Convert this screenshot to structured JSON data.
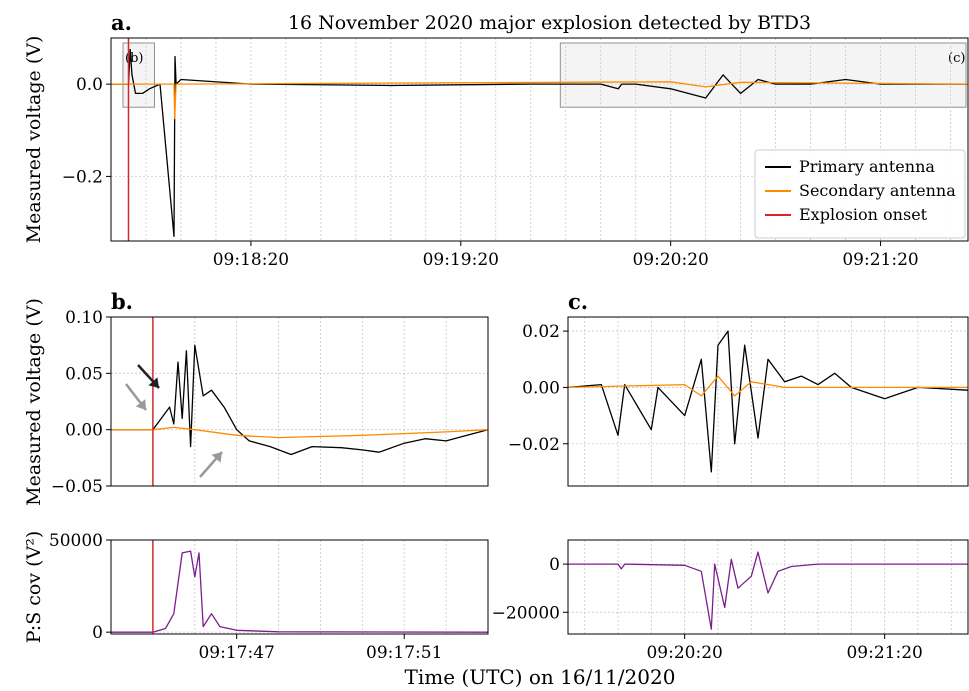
{
  "figure": {
    "xlabel": "Time (UTC) on 16/11/2020",
    "colors": {
      "primary": "#000000",
      "secondary": "#ff8c00",
      "onset": "#d62728",
      "cov": "#7b1f8c",
      "grid": "#c8c8c8",
      "shade": "#dcdcdc"
    }
  },
  "chart_data": [
    {
      "id": "a",
      "type": "line",
      "panel_label": "a.",
      "title": "16 November 2020 major explosion detected by BTD3",
      "ylabel": "Measured voltage (V)",
      "xlim": [
        "09:17:40",
        "09:21:45"
      ],
      "ylim": [
        -0.34,
        0.1
      ],
      "x_ticks": [
        "09:18:20",
        "09:19:20",
        "09:20:20",
        "09:21:20"
      ],
      "y_ticks": [
        -0.2,
        0.0
      ],
      "y_tick_labels": [
        "−0.2",
        "0.0"
      ],
      "grid": true,
      "legend": {
        "placement": "lower right",
        "entries": [
          "Primary antenna",
          "Secondary antenna",
          "Explosion onset"
        ]
      },
      "regions": [
        {
          "label": "(b)",
          "x": [
            "09:17:40",
            "09:17:53"
          ],
          "y": [
            -0.05,
            0.1
          ]
        },
        {
          "label": "(c)",
          "x": [
            "09:19:45",
            "09:21:45"
          ],
          "y": [
            -0.05,
            0.1
          ]
        }
      ],
      "onset": "09:17:45",
      "series": [
        {
          "name": "Primary antenna",
          "points": [
            [
              "09:17:40",
              0.0
            ],
            [
              "09:17:45",
              0.0
            ],
            [
              "09:17:45.5",
              0.075
            ],
            [
              "09:17:46",
              0.02
            ],
            [
              "09:17:47",
              -0.02
            ],
            [
              "09:17:49",
              -0.02
            ],
            [
              "09:17:51",
              -0.01
            ],
            [
              "09:17:54",
              0.0
            ],
            [
              "09:17:58",
              -0.33
            ],
            [
              "09:17:58.3",
              0.06
            ],
            [
              "09:17:58.6",
              0.0
            ],
            [
              "09:18:00",
              0.01
            ],
            [
              "09:18:20",
              0.0
            ],
            [
              "09:19:00",
              -0.003
            ],
            [
              "09:19:40",
              0.0
            ],
            [
              "09:20:00",
              0.0
            ],
            [
              "09:20:05",
              -0.01
            ],
            [
              "09:20:06",
              0.0
            ],
            [
              "09:20:10",
              0.0
            ],
            [
              "09:20:20",
              -0.01
            ],
            [
              "09:20:30",
              -0.03
            ],
            [
              "09:20:35",
              0.02
            ],
            [
              "09:20:40",
              -0.02
            ],
            [
              "09:20:45",
              0.01
            ],
            [
              "09:20:50",
              0.0
            ],
            [
              "09:21:00",
              0.0
            ],
            [
              "09:21:10",
              0.01
            ],
            [
              "09:21:20",
              0.0
            ],
            [
              "09:21:45",
              0.0
            ]
          ]
        },
        {
          "name": "Secondary antenna",
          "points": [
            [
              "09:17:40",
              0.0
            ],
            [
              "09:17:58",
              0.0
            ],
            [
              "09:17:58.2",
              -0.075
            ],
            [
              "09:17:58.6",
              0.0
            ],
            [
              "09:20:20",
              0.005
            ],
            [
              "09:20:30",
              -0.006
            ],
            [
              "09:20:40",
              0.004
            ],
            [
              "09:21:45",
              0.0
            ]
          ]
        }
      ]
    },
    {
      "id": "b",
      "type": "line",
      "panel_label": "b.",
      "ylabel": "Measured voltage (V)",
      "xlim": [
        "09:17:44",
        "09:17:53"
      ],
      "ylim": [
        -0.05,
        0.1
      ],
      "y_ticks": [
        -0.05,
        0.0,
        0.05,
        0.1
      ],
      "y_tick_labels": [
        "−0.05",
        "0.00",
        "0.05",
        "0.10"
      ],
      "grid": true,
      "onset": "09:17:45",
      "series": [
        {
          "name": "Primary antenna",
          "points": [
            [
              "09:17:44",
              0.0
            ],
            [
              "09:17:45",
              0.0
            ],
            [
              "09:17:45.2",
              0.01
            ],
            [
              "09:17:45.4",
              0.02
            ],
            [
              "09:17:45.5",
              0.005
            ],
            [
              "09:17:45.6",
              0.06
            ],
            [
              "09:17:45.7",
              0.01
            ],
            [
              "09:17:45.8",
              0.07
            ],
            [
              "09:17:45.9",
              -0.015
            ],
            [
              "09:17:46",
              0.075
            ],
            [
              "09:17:46.2",
              0.03
            ],
            [
              "09:17:46.4",
              0.035
            ],
            [
              "09:17:46.7",
              0.02
            ],
            [
              "09:17:47",
              0.0
            ],
            [
              "09:17:47.3",
              -0.01
            ],
            [
              "09:17:47.8",
              -0.015
            ],
            [
              "09:17:48.3",
              -0.022
            ],
            [
              "09:17:48.8",
              -0.015
            ],
            [
              "09:17:49.5",
              -0.016
            ],
            [
              "09:17:50",
              -0.018
            ],
            [
              "09:17:50.4",
              -0.02
            ],
            [
              "09:17:51",
              -0.012
            ],
            [
              "09:17:51.5",
              -0.008
            ],
            [
              "09:17:52",
              -0.01
            ],
            [
              "09:17:52.5",
              -0.005
            ],
            [
              "09:17:53",
              0.0
            ]
          ]
        },
        {
          "name": "Secondary antenna",
          "points": [
            [
              "09:17:44",
              0.0
            ],
            [
              "09:17:45",
              0.0
            ],
            [
              "09:17:45.5",
              0.002
            ],
            [
              "09:17:46",
              0.0
            ],
            [
              "09:17:47",
              -0.005
            ],
            [
              "09:17:48",
              -0.007
            ],
            [
              "09:17:50",
              -0.005
            ],
            [
              "09:17:52",
              -0.002
            ],
            [
              "09:17:53",
              0.0
            ]
          ]
        }
      ],
      "annotations": [
        "arrow",
        "arrow",
        "arrow"
      ]
    },
    {
      "id": "b-cov",
      "type": "line",
      "ylabel": "P:S cov (V²)",
      "xlim": [
        "09:17:44",
        "09:17:53"
      ],
      "ylim": [
        -1000,
        50000
      ],
      "x_ticks": [
        "09:17:47",
        "09:17:51"
      ],
      "y_ticks": [
        0,
        50000
      ],
      "y_tick_labels": [
        "0",
        "50000"
      ],
      "grid": true,
      "onset": "09:17:45",
      "series": [
        {
          "name": "P:S cov",
          "points": [
            [
              "09:17:44",
              0
            ],
            [
              "09:17:45",
              0
            ],
            [
              "09:17:45.3",
              2000
            ],
            [
              "09:17:45.5",
              10000
            ],
            [
              "09:17:45.7",
              43000
            ],
            [
              "09:17:45.9",
              44000
            ],
            [
              "09:17:46",
              30000
            ],
            [
              "09:17:46.1",
              43000
            ],
            [
              "09:17:46.2",
              3000
            ],
            [
              "09:17:46.4",
              10000
            ],
            [
              "09:17:46.6",
              3000
            ],
            [
              "09:17:47",
              1000
            ],
            [
              "09:17:48",
              200
            ],
            [
              "09:17:53",
              0
            ]
          ]
        }
      ]
    },
    {
      "id": "c",
      "type": "line",
      "panel_label": "c.",
      "xlim": [
        "09:19:45",
        "09:21:45"
      ],
      "ylim": [
        -0.035,
        0.025
      ],
      "y_ticks": [
        -0.02,
        0.0,
        0.02
      ],
      "y_tick_labels": [
        "−0.02",
        "0.00",
        "0.02"
      ],
      "grid": true,
      "series": [
        {
          "name": "Primary antenna",
          "points": [
            [
              "09:19:45",
              0.0
            ],
            [
              "09:19:55",
              0.001
            ],
            [
              "09:20:00",
              -0.017
            ],
            [
              "09:20:02",
              0.001
            ],
            [
              "09:20:10",
              -0.015
            ],
            [
              "09:20:12",
              0.0
            ],
            [
              "09:20:20",
              -0.01
            ],
            [
              "09:20:25",
              0.01
            ],
            [
              "09:20:28",
              -0.03
            ],
            [
              "09:20:30",
              0.015
            ],
            [
              "09:20:33",
              0.02
            ],
            [
              "09:20:35",
              -0.02
            ],
            [
              "09:20:38",
              0.015
            ],
            [
              "09:20:42",
              -0.018
            ],
            [
              "09:20:45",
              0.01
            ],
            [
              "09:20:50",
              0.002
            ],
            [
              "09:20:55",
              0.004
            ],
            [
              "09:21:00",
              0.001
            ],
            [
              "09:21:05",
              0.005
            ],
            [
              "09:21:10",
              0.0
            ],
            [
              "09:21:20",
              -0.004
            ],
            [
              "09:21:30",
              0.0
            ],
            [
              "09:21:45",
              -0.001
            ]
          ]
        },
        {
          "name": "Secondary antenna",
          "points": [
            [
              "09:19:45",
              0.0
            ],
            [
              "09:20:20",
              0.001
            ],
            [
              "09:20:25",
              -0.003
            ],
            [
              "09:20:30",
              0.004
            ],
            [
              "09:20:35",
              -0.003
            ],
            [
              "09:20:40",
              0.002
            ],
            [
              "09:20:50",
              0.0
            ],
            [
              "09:21:45",
              0.0
            ]
          ]
        }
      ]
    },
    {
      "id": "c-cov",
      "type": "line",
      "xlim": [
        "09:19:45",
        "09:21:45"
      ],
      "ylim": [
        -29000,
        10000
      ],
      "x_ticks": [
        "09:20:20",
        "09:21:20"
      ],
      "y_ticks": [
        -20000,
        0
      ],
      "y_tick_labels": [
        "−20000",
        "0"
      ],
      "grid": true,
      "series": [
        {
          "name": "P:S cov",
          "points": [
            [
              "09:19:45",
              0
            ],
            [
              "09:20:00",
              0
            ],
            [
              "09:20:01",
              -2000
            ],
            [
              "09:20:02",
              0
            ],
            [
              "09:20:20",
              -500
            ],
            [
              "09:20:25",
              -3000
            ],
            [
              "09:20:28",
              -27000
            ],
            [
              "09:20:29",
              0
            ],
            [
              "09:20:32",
              -18000
            ],
            [
              "09:20:34",
              2000
            ],
            [
              "09:20:36",
              -10000
            ],
            [
              "09:20:40",
              -5000
            ],
            [
              "09:20:42",
              5000
            ],
            [
              "09:20:45",
              -12000
            ],
            [
              "09:20:48",
              -3000
            ],
            [
              "09:20:52",
              -1000
            ],
            [
              "09:21:00",
              0
            ],
            [
              "09:21:45",
              0
            ]
          ]
        }
      ]
    }
  ]
}
